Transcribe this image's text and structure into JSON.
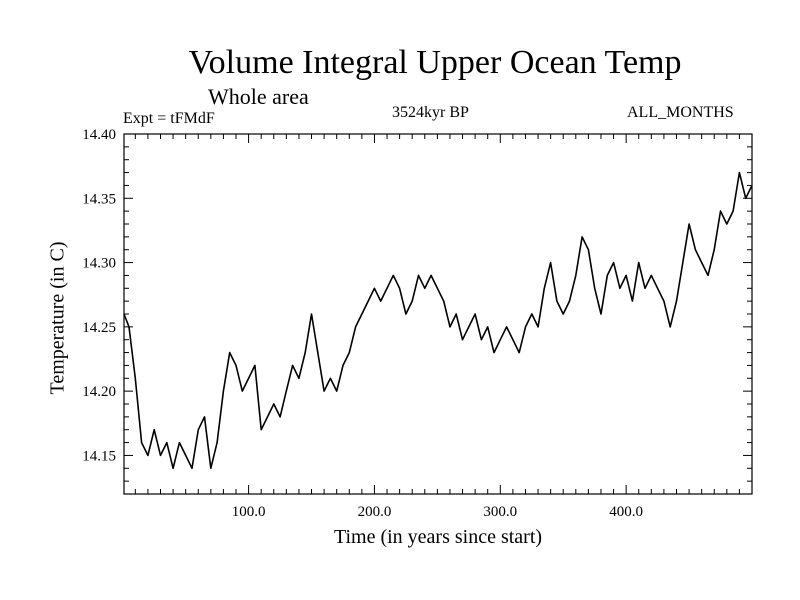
{
  "chart_data": {
    "type": "line",
    "title": "Volume Integral Upper Ocean Temp",
    "subtitle": "Whole area",
    "left_note": "Expt = tFMdF",
    "center_note": "3524kyr BP",
    "right_note": "ALL_MONTHS",
    "xlabel": "Time (in years since start)",
    "ylabel": "Temperature (in C)",
    "xlim": [
      1,
      500
    ],
    "ylim": [
      14.12,
      14.4
    ],
    "x_ticks": [
      100,
      200,
      300,
      400
    ],
    "x_tick_labels": [
      "100.0",
      "200.0",
      "300.0",
      "400.0"
    ],
    "y_ticks": [
      14.15,
      14.2,
      14.25,
      14.3,
      14.35,
      14.4
    ],
    "y_tick_labels": [
      "14.15",
      "14.20",
      "14.25",
      "14.30",
      "14.35",
      "14.40"
    ],
    "series": [
      {
        "name": "Temperature",
        "x": [
          1,
          5,
          10,
          15,
          20,
          25,
          30,
          35,
          40,
          45,
          50,
          55,
          60,
          65,
          70,
          75,
          80,
          85,
          90,
          95,
          100,
          105,
          110,
          115,
          120,
          125,
          130,
          135,
          140,
          145,
          150,
          155,
          160,
          165,
          170,
          175,
          180,
          185,
          190,
          195,
          200,
          205,
          210,
          215,
          220,
          225,
          230,
          235,
          240,
          245,
          250,
          255,
          260,
          265,
          270,
          275,
          280,
          285,
          290,
          295,
          300,
          305,
          310,
          315,
          320,
          325,
          330,
          335,
          340,
          345,
          350,
          355,
          360,
          365,
          370,
          375,
          380,
          385,
          390,
          395,
          400,
          405,
          410,
          415,
          420,
          425,
          430,
          435,
          440,
          445,
          450,
          455,
          460,
          465,
          470,
          475,
          480,
          485,
          490,
          495,
          500
        ],
        "values": [
          14.26,
          14.25,
          14.21,
          14.16,
          14.15,
          14.17,
          14.15,
          14.16,
          14.14,
          14.16,
          14.15,
          14.14,
          14.17,
          14.18,
          14.14,
          14.16,
          14.2,
          14.23,
          14.22,
          14.2,
          14.21,
          14.22,
          14.17,
          14.18,
          14.19,
          14.18,
          14.2,
          14.22,
          14.21,
          14.23,
          14.26,
          14.23,
          14.2,
          14.21,
          14.2,
          14.22,
          14.23,
          14.25,
          14.26,
          14.27,
          14.28,
          14.27,
          14.28,
          14.29,
          14.28,
          14.26,
          14.27,
          14.29,
          14.28,
          14.29,
          14.28,
          14.27,
          14.25,
          14.26,
          14.24,
          14.25,
          14.26,
          14.24,
          14.25,
          14.23,
          14.24,
          14.25,
          14.24,
          14.23,
          14.25,
          14.26,
          14.25,
          14.28,
          14.3,
          14.27,
          14.26,
          14.27,
          14.29,
          14.32,
          14.31,
          14.28,
          14.26,
          14.29,
          14.3,
          14.28,
          14.29,
          14.27,
          14.3,
          14.28,
          14.29,
          14.28,
          14.27,
          14.25,
          14.27,
          14.3,
          14.33,
          14.31,
          14.3,
          14.29,
          14.31,
          14.34,
          14.33,
          14.34,
          14.37,
          14.35,
          14.36
        ]
      }
    ]
  }
}
